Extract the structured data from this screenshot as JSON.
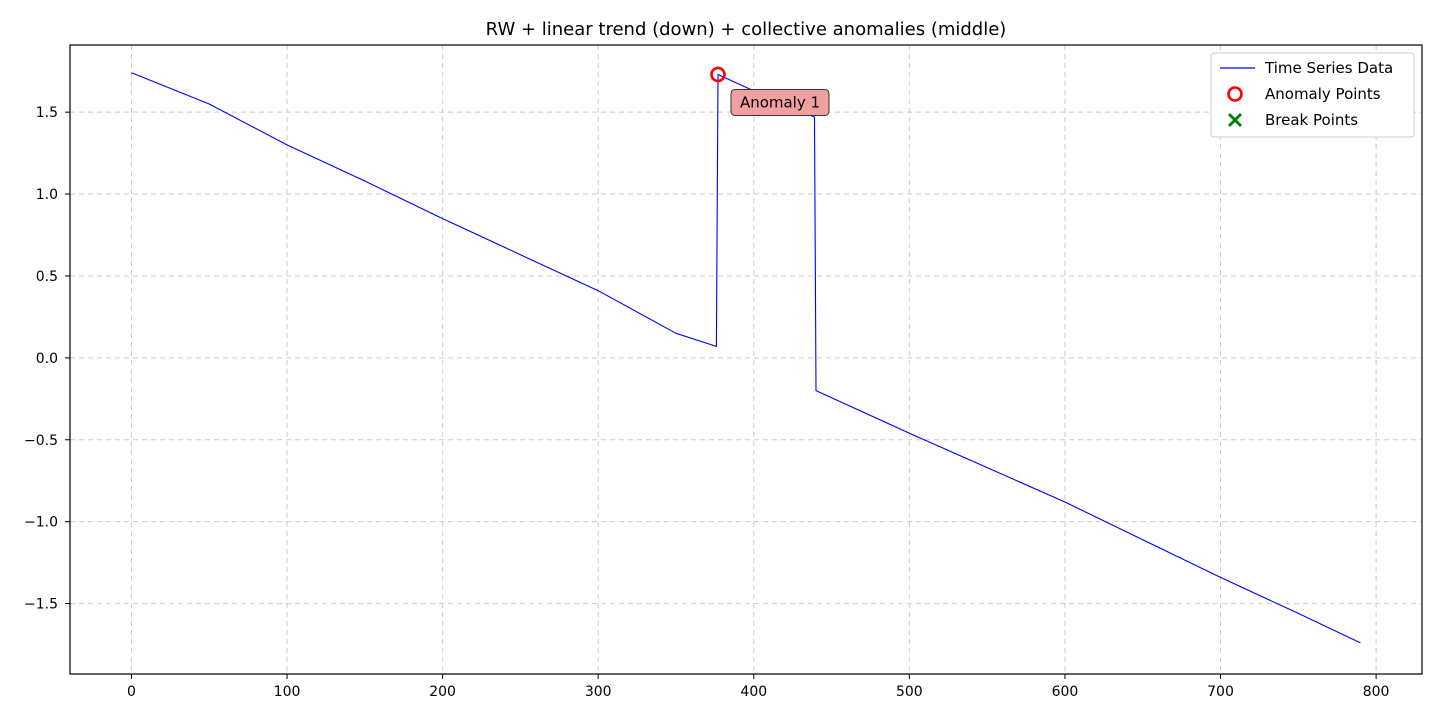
{
  "chart_data": {
    "type": "line",
    "title": "RW + linear trend (down) + collective anomalies (middle)",
    "xlabel": "",
    "ylabel": "",
    "xlim": [
      -39.5,
      829.5
    ],
    "ylim": [
      -1.93,
      1.91
    ],
    "xticks": [
      0,
      100,
      200,
      300,
      400,
      500,
      600,
      700,
      800
    ],
    "xtick_labels": [
      "0",
      "100",
      "200",
      "300",
      "400",
      "500",
      "600",
      "700",
      "800"
    ],
    "yticks": [
      1.5,
      1.0,
      0.5,
      0.0,
      -0.5,
      -1.0,
      -1.5
    ],
    "ytick_labels": [
      "1.5",
      "1.0",
      "0.5",
      "0.0",
      "−0.5",
      "−1.0",
      "−1.5"
    ],
    "grid": true,
    "legend_position": "top-right",
    "colors": {
      "series": "#0000ff",
      "anomaly": "#ff0000",
      "break": "#008000",
      "grid": "#cccccc",
      "annotation_bg": "#f0a0a0"
    },
    "series": [
      {
        "name": "Time Series Data",
        "x": [
          0,
          50,
          100,
          150,
          200,
          250,
          300,
          350,
          376,
          377,
          400,
          439,
          440,
          500,
          550,
          600,
          650,
          700,
          750,
          790
        ],
        "y": [
          1.74,
          1.55,
          1.3,
          1.08,
          0.85,
          0.63,
          0.41,
          0.15,
          0.07,
          1.73,
          1.63,
          1.47,
          -0.2,
          -0.46,
          -0.67,
          -0.88,
          -1.11,
          -1.34,
          -1.56,
          -1.74
        ]
      }
    ],
    "anomaly_points": {
      "name": "Anomaly Points",
      "points": [
        {
          "x": 377,
          "y": 1.73
        }
      ]
    },
    "break_points": {
      "name": "Break Points",
      "points": []
    },
    "annotations": [
      {
        "text": "Anomaly 1",
        "x": 377,
        "y": 1.73
      }
    ]
  }
}
